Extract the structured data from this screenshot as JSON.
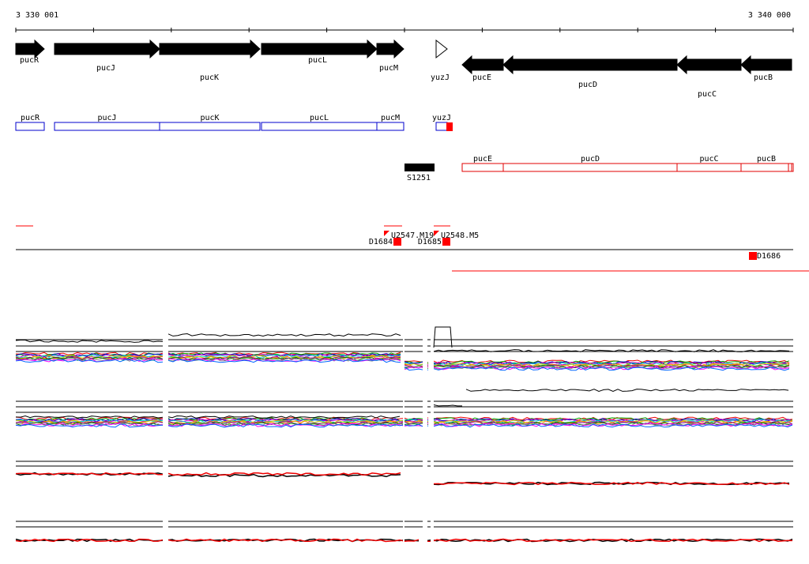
{
  "axis": {
    "start": "3 330 001",
    "end": "3 340 000"
  },
  "genes": [
    "pucR",
    "pucJ",
    "pucK",
    "pucL",
    "pucM",
    "yuzJ",
    "pucE",
    "pucD",
    "pucC",
    "pucB"
  ],
  "gene_boxes": [
    "pucR",
    "pucJ",
    "pucK",
    "pucL",
    "pucM",
    "yuzJ",
    "pucE",
    "pucD",
    "pucC",
    "pucB"
  ],
  "segment": "S1251",
  "features": [
    "U2547.M19",
    "U2548.M5",
    "D1684",
    "D1685",
    "D1686"
  ]
}
